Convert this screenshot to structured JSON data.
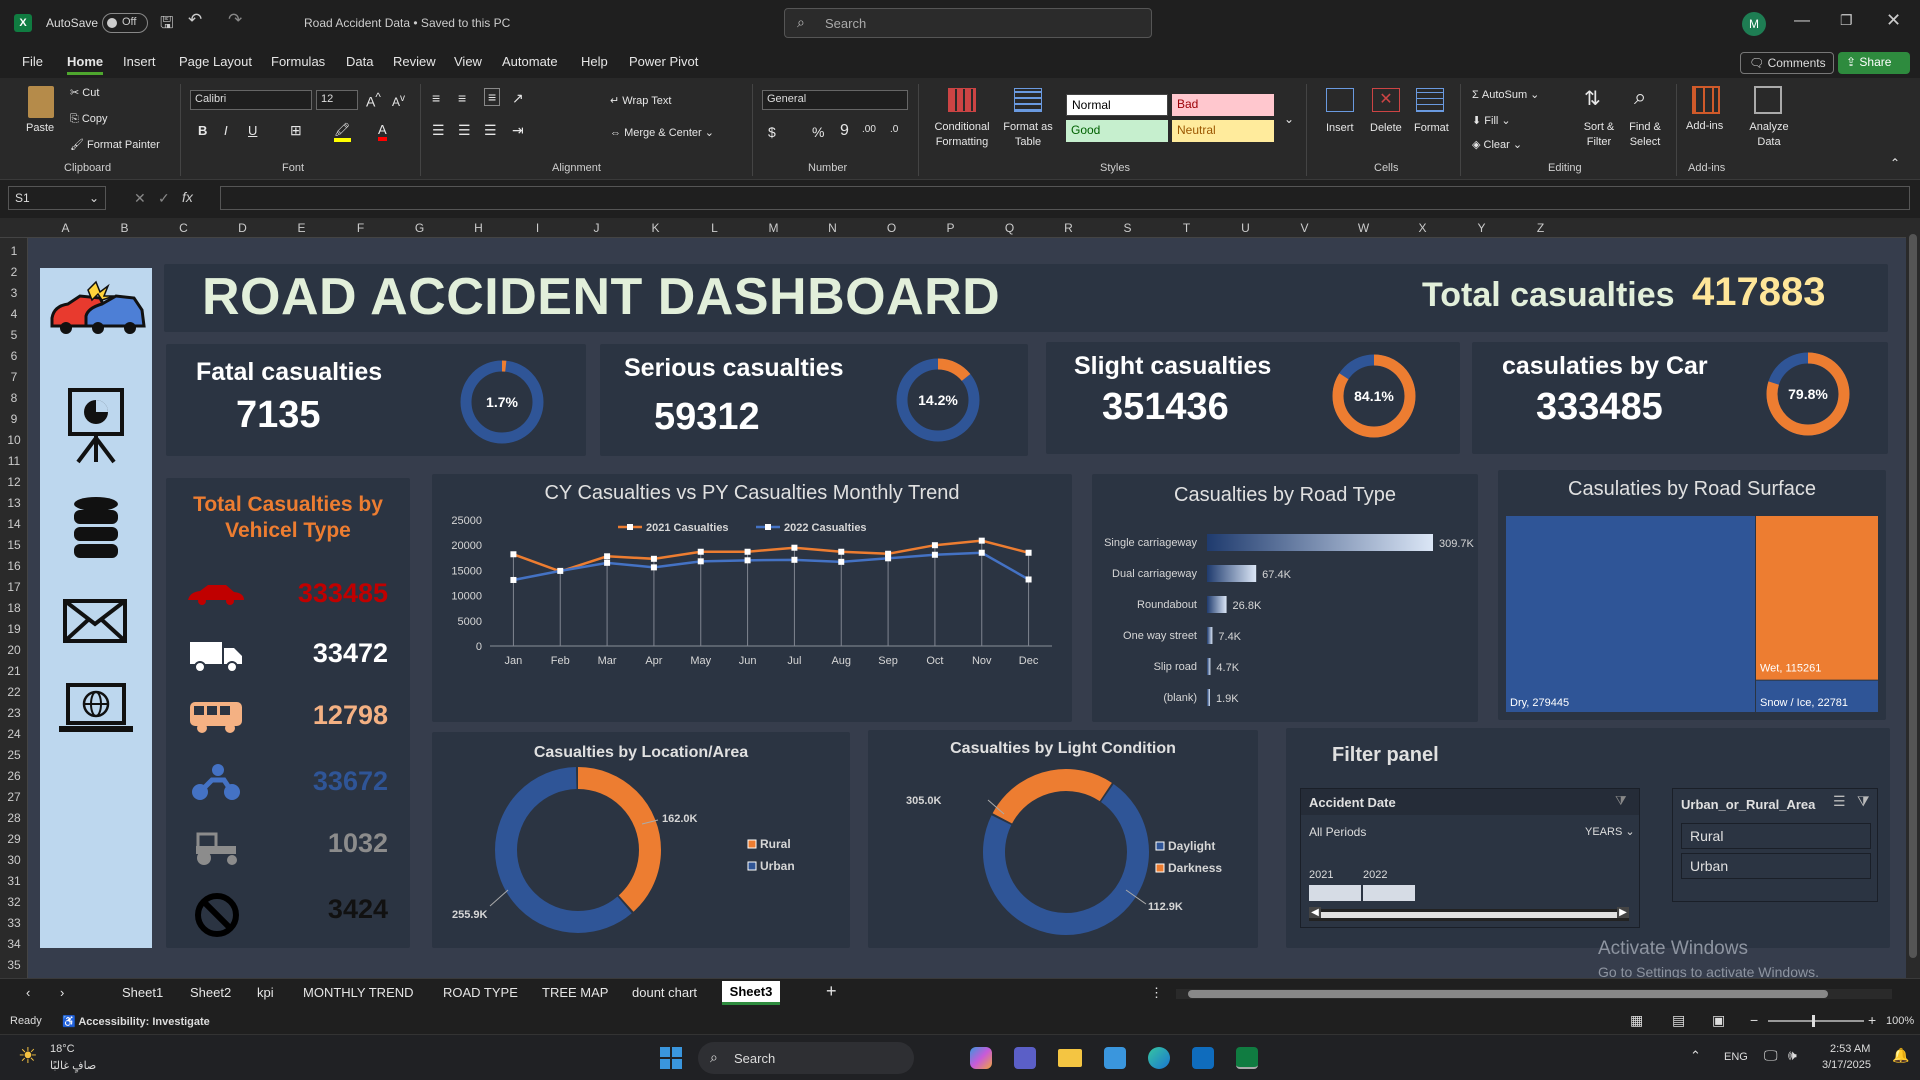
{
  "window": {
    "autosave_label": "AutoSave",
    "autosave_state": "Off",
    "doc_title": "Road Accident Data • Saved to this PC",
    "search_placeholder": "Search",
    "user_initial": "M"
  },
  "menu": {
    "items": [
      "File",
      "Home",
      "Insert",
      "Page Layout",
      "Formulas",
      "Data",
      "Review",
      "View",
      "Automate",
      "Help",
      "Power Pivot"
    ],
    "active": "Home",
    "comments": "Comments",
    "share": "Share"
  },
  "ribbon": {
    "clipboard": {
      "paste": "Paste",
      "cut": "Cut",
      "copy": "Copy",
      "format_painter": "Format Painter",
      "label": "Clipboard"
    },
    "font": {
      "name": "Calibri",
      "size": "12",
      "label": "Font"
    },
    "alignment": {
      "wrap": "Wrap Text",
      "merge": "Merge & Center",
      "label": "Alignment"
    },
    "number": {
      "format": "General",
      "label": "Number"
    },
    "styles": {
      "conditional": "Conditional Formatting",
      "format_table": "Format as Table",
      "normal": "Normal",
      "bad": "Bad",
      "good": "Good",
      "neutral": "Neutral",
      "label": "Styles"
    },
    "cells": {
      "insert": "Insert",
      "delete": "Delete",
      "format": "Format",
      "label": "Cells"
    },
    "editing": {
      "autosum": "AutoSum",
      "fill": "Fill",
      "clear": "Clear",
      "sort": "Sort & Filter",
      "find": "Find & Select",
      "label": "Editing"
    },
    "addins": {
      "addins": "Add-ins",
      "analyze": "Analyze Data",
      "label": "Add-ins"
    }
  },
  "formula_bar": {
    "name_box": "S1",
    "fx": "fx",
    "content": ""
  },
  "columns": [
    "A",
    "B",
    "C",
    "D",
    "E",
    "F",
    "G",
    "H",
    "I",
    "J",
    "K",
    "L",
    "M",
    "N",
    "O",
    "P",
    "Q",
    "R",
    "S",
    "T",
    "U",
    "V",
    "W",
    "X",
    "Y",
    "Z"
  ],
  "rows": [
    "1",
    "2",
    "3",
    "4",
    "5",
    "6",
    "7",
    "8",
    "9",
    "10",
    "11",
    "12",
    "13",
    "14",
    "15",
    "16",
    "17",
    "18",
    "19",
    "20",
    "21",
    "22",
    "23",
    "24",
    "25",
    "26",
    "27",
    "28",
    "29",
    "30",
    "31",
    "32",
    "33",
    "34",
    "35"
  ],
  "dashboard": {
    "title": "ROAD ACCIDENT DASHBOARD",
    "total_label": "Total casualties",
    "total_value": "417883",
    "kpis": [
      {
        "title": "Fatal casualties",
        "value": "7135",
        "pct_label": "1.7%",
        "pct": 0.017
      },
      {
        "title": "Serious casualties",
        "value": "59312",
        "pct_label": "14.2%",
        "pct": 0.142
      },
      {
        "title": "Slight casualties",
        "value": "351436",
        "pct_label": "84.1%",
        "pct": 0.841
      },
      {
        "title": "casulaties by Car",
        "value": "333485",
        "pct_label": "79.8%",
        "pct": 0.798
      }
    ],
    "vehicle": {
      "title": "Total Casualties by Vehicel Type",
      "rows": [
        {
          "icon": "car-icon",
          "value": "333485",
          "color": "#c00000"
        },
        {
          "icon": "truck-icon",
          "value": "33472",
          "color": "#ffffff"
        },
        {
          "icon": "bus-icon",
          "value": "12798",
          "color": "#f4b183"
        },
        {
          "icon": "motorcycle-icon",
          "value": "33672",
          "color": "#2f5597"
        },
        {
          "icon": "tractor-icon",
          "value": "1032",
          "color": "#8c8c8c"
        },
        {
          "icon": "no-entry-icon",
          "value": "3424",
          "color": "#111111"
        }
      ]
    },
    "filter": {
      "title": "Filter panel",
      "date_header": "Accident Date",
      "all_periods": "All Periods",
      "years": "YEARS",
      "year_labels": [
        "2021",
        "2022"
      ],
      "area_header": "Urban_or_Rural_Area",
      "area_items": [
        "Rural",
        "Urban"
      ]
    },
    "watermark": {
      "line1": "Activate Windows",
      "line2": "Go to Settings to activate Windows."
    }
  },
  "chart_data": [
    {
      "type": "line",
      "title": "CY Casualties vs PY Casualties Monthly Trend",
      "categories": [
        "Jan",
        "Feb",
        "Mar",
        "Apr",
        "May",
        "Jun",
        "Jul",
        "Aug",
        "Sep",
        "Oct",
        "Nov",
        "Dec"
      ],
      "series": [
        {
          "name": "2021 Casualties",
          "color": "#ed7d31",
          "values": [
            18200,
            14800,
            17800,
            17300,
            18700,
            18700,
            19500,
            18700,
            18300,
            20000,
            20900,
            18500
          ]
        },
        {
          "name": "2022 Casualties",
          "color": "#4472c4",
          "values": [
            13100,
            14900,
            16500,
            15600,
            16800,
            17000,
            17100,
            16700,
            17400,
            18100,
            18500,
            13200
          ]
        }
      ],
      "yticks": [
        "0",
        "5000",
        "10000",
        "15000",
        "20000",
        "25000"
      ],
      "ylim": [
        0,
        25000
      ]
    },
    {
      "type": "bar",
      "title": "Casualties by Road Type",
      "categories": [
        "Single carriageway",
        "Dual carriageway",
        "Roundabout",
        "One way street",
        "Slip road",
        "(blank)"
      ],
      "values": [
        309700,
        67400,
        26800,
        7400,
        4700,
        1900
      ],
      "labels": [
        "309.7K",
        "67.4K",
        "26.8K",
        "7.4K",
        "4.7K",
        "1.9K"
      ]
    },
    {
      "type": "treemap",
      "title": "Casulaties by Road Surface",
      "categories": [
        "Dry",
        "Wet",
        "Snow / Ice"
      ],
      "values": [
        279445,
        115261,
        22781
      ],
      "labels": [
        "Dry, 279445",
        "Wet, 115261",
        "Snow / Ice, 22781"
      ],
      "colors": [
        "#2f5597",
        "#ed7d31",
        "#2f5597"
      ]
    },
    {
      "type": "pie",
      "title": "Casualties by Location/Area",
      "categories": [
        "Rural",
        "Urban"
      ],
      "values": [
        162000,
        255900
      ],
      "labels": [
        "162.0K",
        "255.9K"
      ],
      "colors": [
        "#ed7d31",
        "#2f5597"
      ]
    },
    {
      "type": "pie",
      "title": "Casualties by Light Condition",
      "categories": [
        "Daylight",
        "Darkness"
      ],
      "values": [
        305000,
        112900
      ],
      "labels": [
        "305.0K",
        "112.9K"
      ],
      "colors": [
        "#2f5597",
        "#ed7d31"
      ]
    }
  ],
  "sheet_tabs": {
    "tabs": [
      "Sheet1",
      "Sheet2",
      "kpi",
      "MONTHLY TREND",
      "ROAD TYPE",
      "TREE MAP",
      "dount chart",
      "Sheet3"
    ],
    "active": "Sheet3"
  },
  "status": {
    "ready": "Ready",
    "accessibility": "Accessibility: Investigate",
    "zoom": "100%"
  },
  "taskbar": {
    "temp": "18°C",
    "weather": "صافٍ غالبًا",
    "search": "Search",
    "lang": "ENG",
    "time": "2:53 AM",
    "date": "3/17/2025"
  }
}
